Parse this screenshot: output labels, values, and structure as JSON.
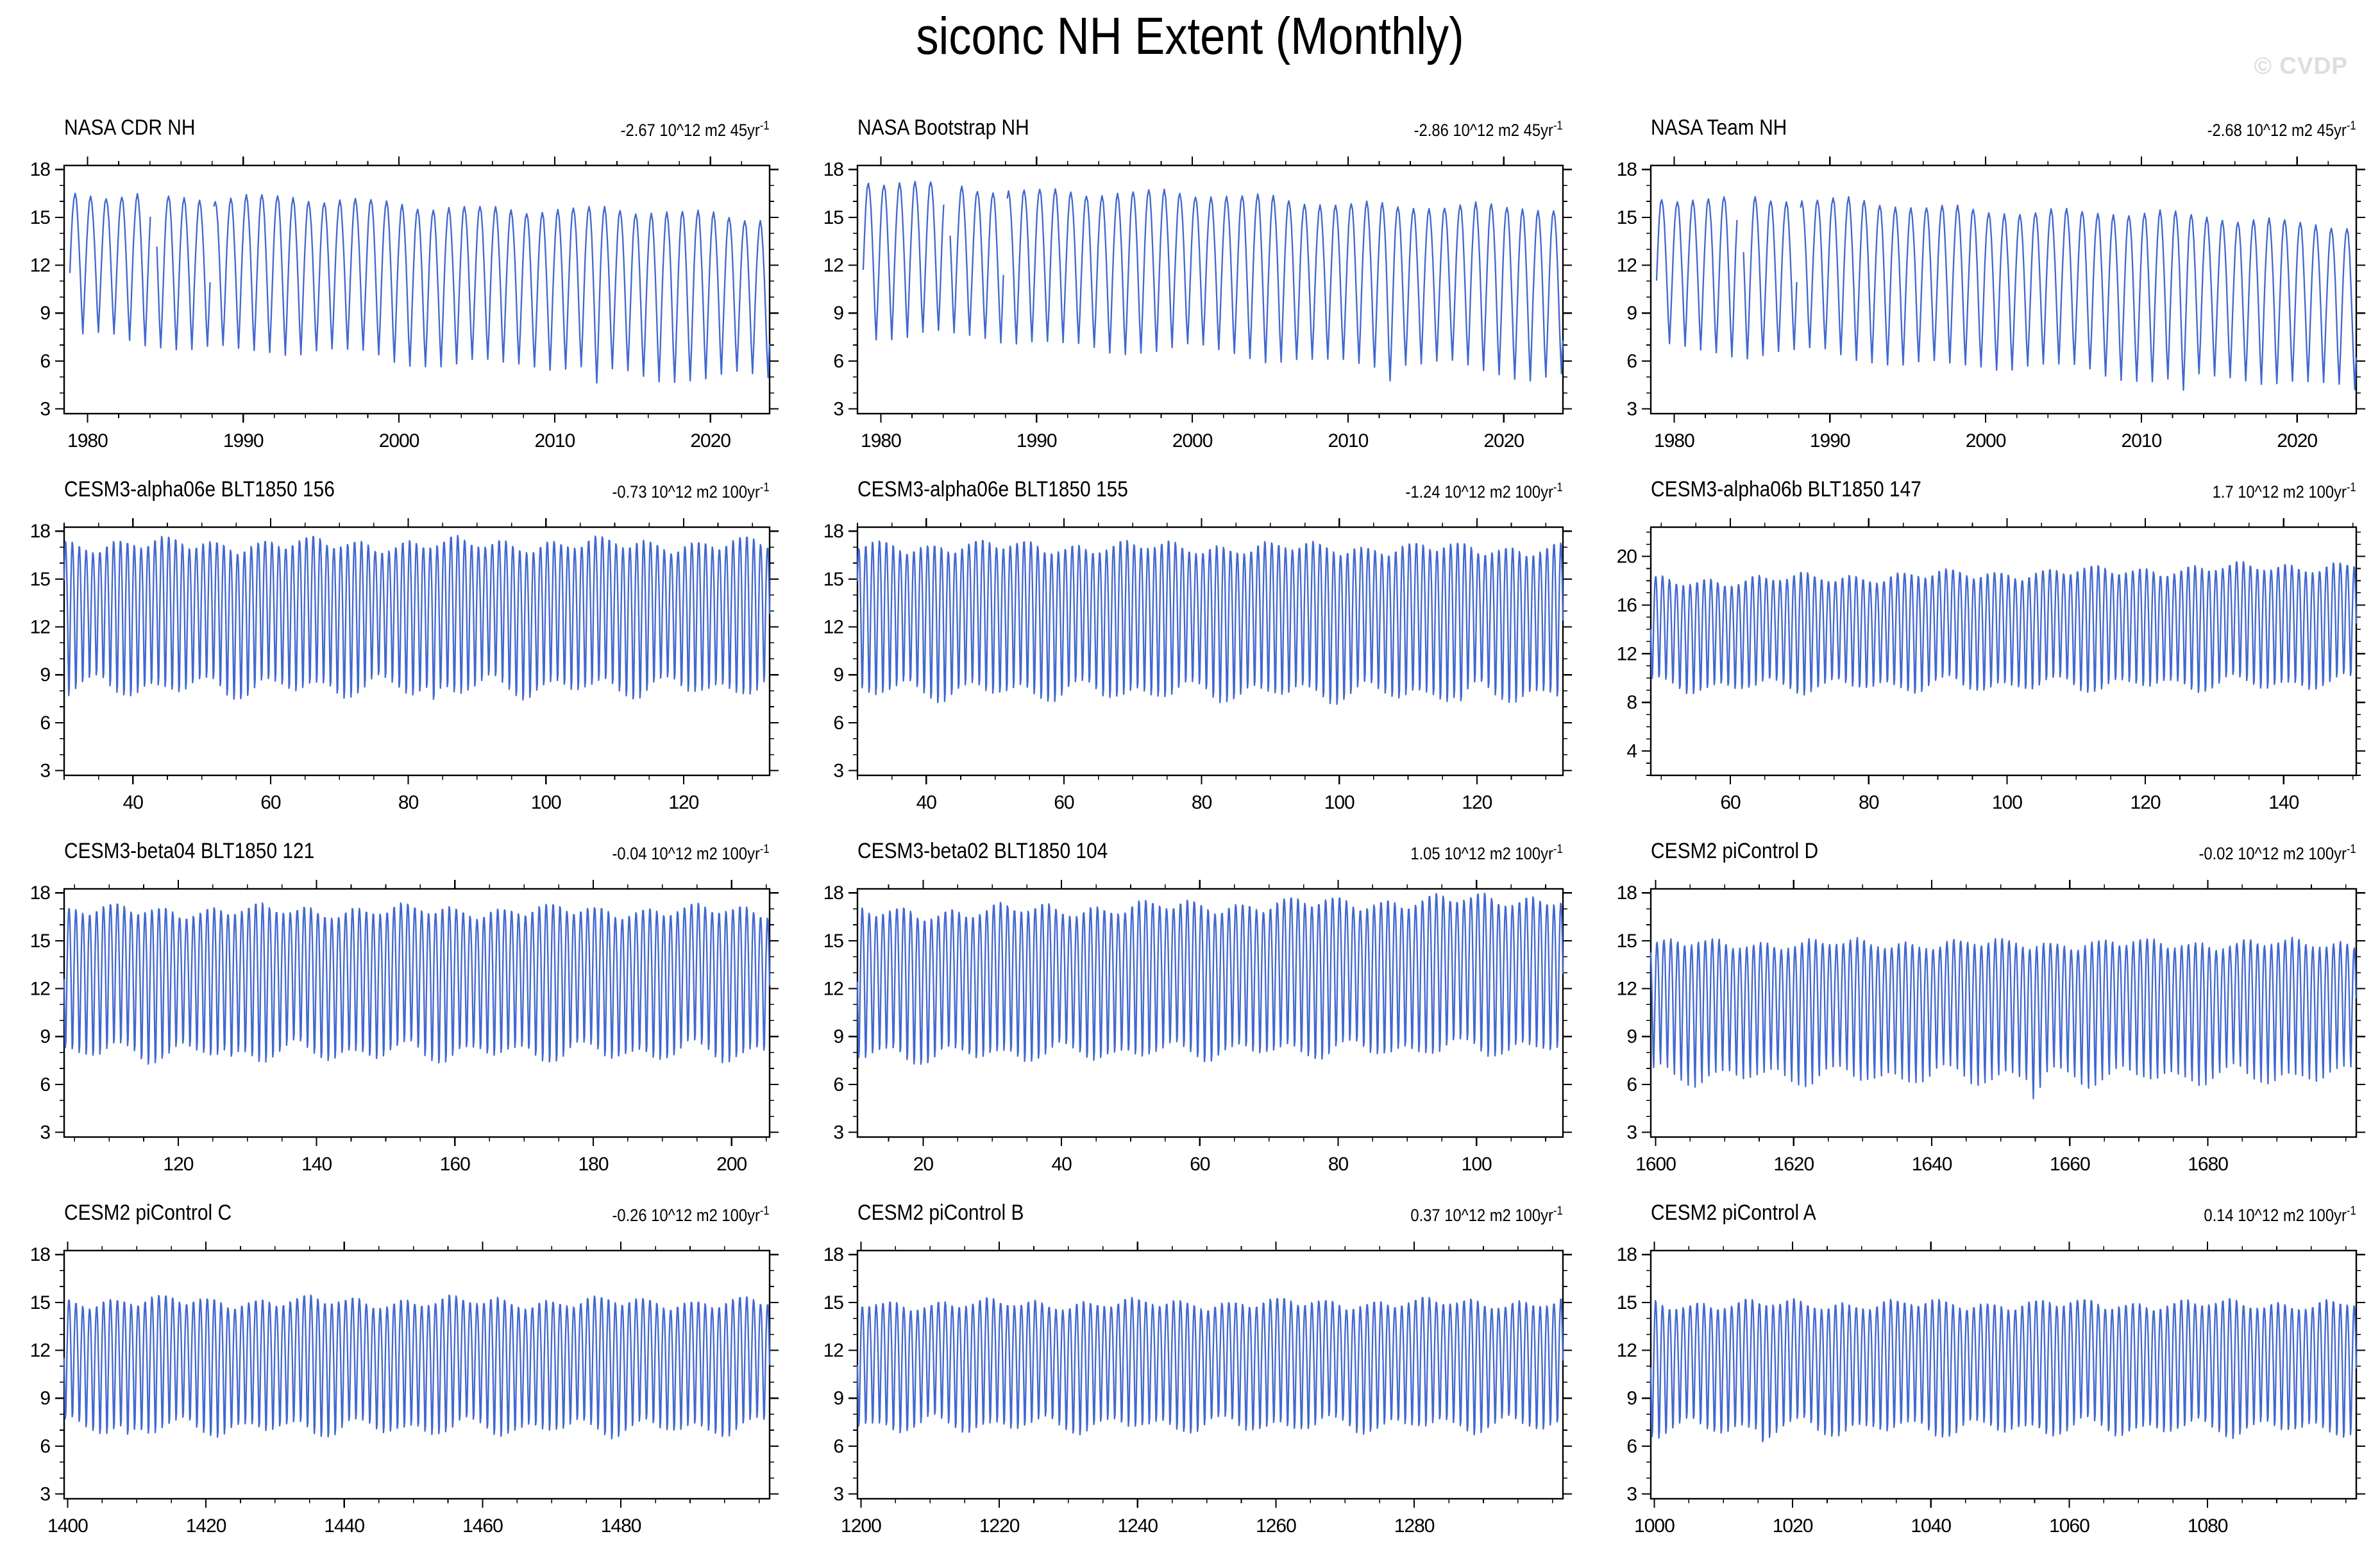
{
  "page": {
    "title": "siconc NH Extent (Monthly)",
    "watermark": "© CVDP"
  },
  "chart_data": {
    "type": "line",
    "layout": {
      "rows": 4,
      "cols": 3
    },
    "line_color": "#4268cf",
    "axis_color": "#000000",
    "grid": false,
    "legend": "none",
    "y_unit": "10^12 m2",
    "series_note": "Each panel is a monthly-resolution seasonal cycle of NH sea-ice extent: values oscillate each year between the summer_min and winter_max envelopes listed below (read from the plotted axes).",
    "panels": [
      {
        "title": "NASA CDR NH",
        "trend": "-2.67 10^12 m2 45yr",
        "trend_sup": "-1",
        "xlim": [
          1978.5,
          2023.8
        ],
        "xticks": [
          1980,
          1990,
          2000,
          2010,
          2020
        ],
        "x_minor_step": 2,
        "ylim": [
          2.7,
          18.25
        ],
        "yticks": [
          3,
          6,
          9,
          12,
          15,
          18
        ],
        "y_minor_step": 1,
        "winter_max": [
          16.6,
          15.0
        ],
        "summer_min": [
          7.4,
          4.7
        ],
        "max_var": 0.35,
        "min_var": 0.5,
        "dip": {
          "center": 2012.7,
          "depth": 1.0,
          "width": 0.45
        },
        "gaps": [
          [
            1984.05,
            1984.38
          ],
          [
            1987.88,
            1988.06
          ]
        ],
        "data_start": 1978.87,
        "seed": 11
      },
      {
        "title": "NASA Bootstrap NH",
        "trend": "-2.86 10^12 m2 45yr",
        "trend_sup": "-1",
        "xlim": [
          1978.5,
          2023.8
        ],
        "xticks": [
          1980,
          1990,
          2000,
          2010,
          2020
        ],
        "x_minor_step": 2,
        "ylim": [
          2.7,
          18.25
        ],
        "yticks": [
          3,
          6,
          9,
          12,
          15,
          18
        ],
        "y_minor_step": 1,
        "winter_max": [
          17.2,
          15.4
        ],
        "summer_min": [
          7.8,
          5.1
        ],
        "max_var": 0.35,
        "min_var": 0.5,
        "dip": {
          "center": 2012.7,
          "depth": 0.9,
          "width": 0.45
        },
        "gaps": [
          [
            1984.05,
            1984.38
          ],
          [
            1987.88,
            1988.06
          ]
        ],
        "data_start": 1978.87,
        "seed": 22
      },
      {
        "title": "NASA Team NH",
        "trend": "-2.68 10^12 m2 45yr",
        "trend_sup": "-1",
        "xlim": [
          1978.5,
          2023.8
        ],
        "xticks": [
          1980,
          1990,
          2000,
          2010,
          2020
        ],
        "x_minor_step": 2,
        "ylim": [
          2.7,
          18.25
        ],
        "yticks": [
          3,
          6,
          9,
          12,
          15,
          18
        ],
        "y_minor_step": 1,
        "winter_max": [
          16.4,
          14.6
        ],
        "summer_min": [
          6.9,
          4.3
        ],
        "max_var": 0.35,
        "min_var": 0.5,
        "dip": {
          "center": 2012.7,
          "depth": 1.0,
          "width": 0.45
        },
        "gaps": [
          [
            1984.05,
            1984.38
          ],
          [
            1987.88,
            1988.06
          ]
        ],
        "data_start": 1978.87,
        "seed": 33
      },
      {
        "title": "CESM3-alpha06e BLT1850 156",
        "trend": "-0.73 10^12 m2 100yr",
        "trend_sup": "-1",
        "xlim": [
          30.0,
          132.5
        ],
        "xticks": [
          40,
          60,
          80,
          100,
          120
        ],
        "x_minor_step": 5,
        "ylim": [
          2.7,
          18.25
        ],
        "yticks": [
          3,
          6,
          9,
          12,
          15,
          18
        ],
        "y_minor_step": 1,
        "winter_max": [
          17.2,
          17.2
        ],
        "summer_min": [
          7.6,
          7.6
        ],
        "max_var": 0.55,
        "min_var": 0.85,
        "dip": {
          "center": 84,
          "depth": 1.4,
          "width": 0.5
        },
        "gaps": [],
        "seed": 44
      },
      {
        "title": "CESM3-alpha06e BLT1850 155",
        "trend": "-1.24 10^12 m2 100yr",
        "trend_sup": "-1",
        "xlim": [
          30.0,
          132.5
        ],
        "xticks": [
          40,
          60,
          80,
          100,
          120
        ],
        "x_minor_step": 5,
        "ylim": [
          2.7,
          18.25
        ],
        "yticks": [
          3,
          6,
          9,
          12,
          15,
          18
        ],
        "y_minor_step": 1,
        "winter_max": [
          17.1,
          16.9
        ],
        "summer_min": [
          7.4,
          7.2
        ],
        "max_var": 0.5,
        "min_var": 0.8,
        "dip": {
          "center": 118,
          "depth": 1.0,
          "width": 0.5
        },
        "gaps": [],
        "seed": 55
      },
      {
        "title": "CESM3-alpha06b BLT1850 147",
        "trend": "1.7 10^12 m2 100yr",
        "trend_sup": "-1",
        "xlim": [
          48.5,
          150.5
        ],
        "xticks": [
          60,
          80,
          100,
          120,
          140
        ],
        "x_minor_step": 5,
        "ylim": [
          2.0,
          22.4
        ],
        "yticks": [
          4,
          8,
          12,
          16,
          20
        ],
        "y_minor_step": 1,
        "winter_max": [
          17.9,
          19.3
        ],
        "summer_min": [
          8.7,
          8.9
        ],
        "max_var": 0.55,
        "min_var": 0.8,
        "dip": null,
        "gaps": [],
        "seed": 66
      },
      {
        "title": "CESM3-beta04 BLT1850 121",
        "trend": "-0.04 10^12 m2 100yr",
        "trend_sup": "-1",
        "xlim": [
          103.5,
          205.5
        ],
        "xticks": [
          120,
          140,
          160,
          180,
          200
        ],
        "x_minor_step": 5,
        "ylim": [
          2.7,
          18.25
        ],
        "yticks": [
          3,
          6,
          9,
          12,
          15,
          18
        ],
        "y_minor_step": 1,
        "winter_max": [
          16.9,
          16.9
        ],
        "summer_min": [
          7.4,
          7.4
        ],
        "max_var": 0.5,
        "min_var": 0.8,
        "dip": {
          "center": 128,
          "depth": 0.9,
          "width": 0.5
        },
        "gaps": [],
        "seed": 77
      },
      {
        "title": "CESM3-beta02 BLT1850 104",
        "trend": "1.05 10^12 m2 100yr",
        "trend_sup": "-1",
        "xlim": [
          10.5,
          112.5
        ],
        "xticks": [
          20,
          40,
          60,
          80,
          100
        ],
        "x_minor_step": 5,
        "ylim": [
          2.7,
          18.25
        ],
        "yticks": [
          3,
          6,
          9,
          12,
          15,
          18
        ],
        "y_minor_step": 1,
        "winter_max": [
          16.7,
          17.7
        ],
        "summer_min": [
          7.2,
          7.7
        ],
        "max_var": 0.55,
        "min_var": 0.7,
        "dip": null,
        "gaps": [],
        "seed": 88
      },
      {
        "title": "CESM2 piControl D",
        "trend": "-0.02 10^12 m2 100yr",
        "trend_sup": "-1",
        "xlim": [
          1599.3,
          1701.5
        ],
        "xticks": [
          1600,
          1620,
          1640,
          1660,
          1680
        ],
        "x_minor_step": 5,
        "ylim": [
          2.7,
          18.25
        ],
        "yticks": [
          3,
          6,
          9,
          12,
          15,
          18
        ],
        "y_minor_step": 1,
        "winter_max": [
          14.8,
          14.8
        ],
        "summer_min": [
          6.3,
          6.3
        ],
        "max_var": 0.4,
        "min_var": 0.75,
        "dip": {
          "center": 1655,
          "depth": 1.5,
          "width": 0.8
        },
        "gaps": [],
        "seed": 99
      },
      {
        "title": "CESM2 piControl C",
        "trend": "-0.26 10^12 m2 100yr",
        "trend_sup": "-1",
        "xlim": [
          1399.5,
          1501.5
        ],
        "xticks": [
          1400,
          1420,
          1440,
          1460,
          1480
        ],
        "x_minor_step": 5,
        "ylim": [
          2.7,
          18.25
        ],
        "yticks": [
          3,
          6,
          9,
          12,
          15,
          18
        ],
        "y_minor_step": 1,
        "winter_max": [
          15.1,
          15.0
        ],
        "summer_min": [
          6.6,
          6.6
        ],
        "max_var": 0.45,
        "min_var": 0.7,
        "dip": {
          "center": 1409,
          "depth": 0.8,
          "width": 0.5
        },
        "gaps": [],
        "seed": 110
      },
      {
        "title": "CESM2 piControl B",
        "trend": "0.37 10^12 m2 100yr",
        "trend_sup": "-1",
        "xlim": [
          1199.5,
          1301.5
        ],
        "xticks": [
          1200,
          1220,
          1240,
          1260,
          1280
        ],
        "x_minor_step": 5,
        "ylim": [
          2.7,
          18.25
        ],
        "yticks": [
          3,
          6,
          9,
          12,
          15,
          18
        ],
        "y_minor_step": 1,
        "winter_max": [
          14.9,
          15.0
        ],
        "summer_min": [
          6.8,
          6.8
        ],
        "max_var": 0.4,
        "min_var": 0.65,
        "dip": null,
        "gaps": [],
        "seed": 121
      },
      {
        "title": "CESM2 piControl A",
        "trend": "0.14 10^12 m2 100yr",
        "trend_sup": "-1",
        "xlim": [
          999.5,
          1101.5
        ],
        "xticks": [
          1000,
          1020,
          1040,
          1060,
          1080
        ],
        "x_minor_step": 5,
        "ylim": [
          2.7,
          18.25
        ],
        "yticks": [
          3,
          6,
          9,
          12,
          15,
          18
        ],
        "y_minor_step": 1,
        "winter_max": [
          14.9,
          14.9
        ],
        "summer_min": [
          6.6,
          6.6
        ],
        "max_var": 0.4,
        "min_var": 0.7,
        "dip": {
          "center": 1016,
          "depth": 1.0,
          "width": 0.5
        },
        "gaps": [],
        "seed": 132
      }
    ]
  }
}
